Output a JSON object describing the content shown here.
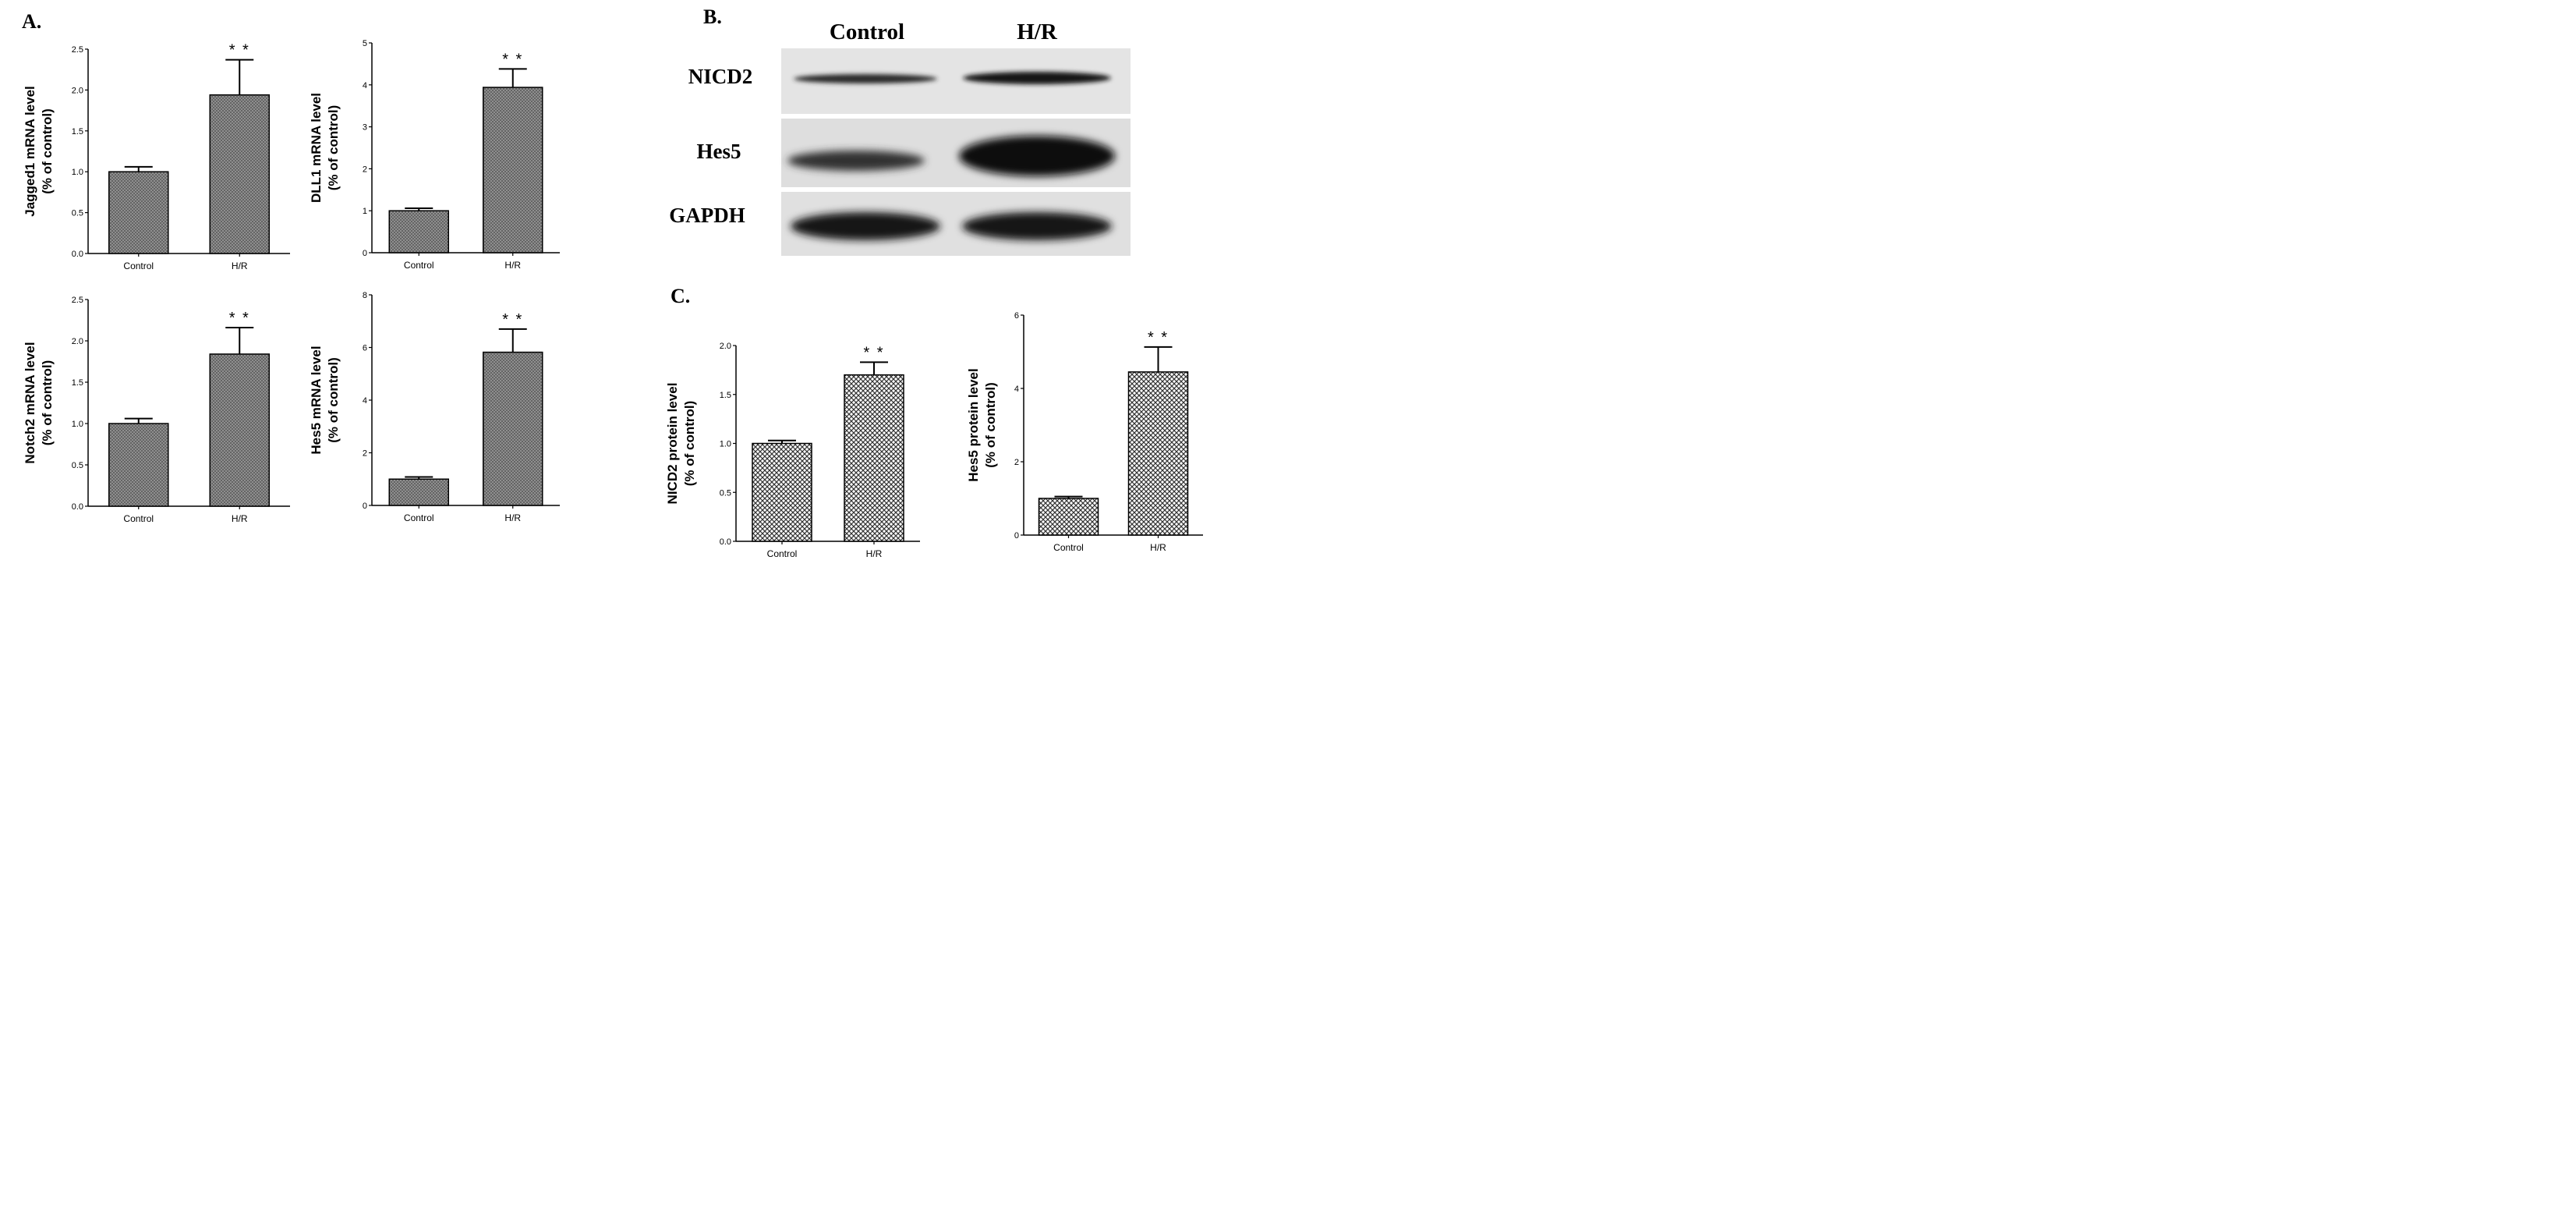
{
  "panels": {
    "a_label": "A.",
    "b_label": "B.",
    "c_label": "C."
  },
  "western_blot": {
    "columns": [
      "Control",
      "H/R"
    ],
    "rows": [
      "NICD2",
      "Hes5",
      "GAPDH"
    ]
  },
  "colors": {
    "bar_fill": "#8a8a8a",
    "axis": "#000000",
    "blot_background": "#e2e2e2",
    "band": "#1a1a1a"
  },
  "chart_data": [
    {
      "type": "bar",
      "categories": [
        "Control",
        "H/R"
      ],
      "values": [
        1.0,
        1.94
      ],
      "errors": [
        0.06,
        0.43
      ],
      "significance": [
        "",
        "* *"
      ],
      "ylabel_lines": [
        "Jagged1 mRNA level",
        "(% of control)"
      ],
      "ylim": [
        0,
        2.5
      ],
      "yticks": [
        "0.0",
        "0.5",
        "1.0",
        "1.5",
        "2.0",
        "2.5"
      ]
    },
    {
      "type": "bar",
      "categories": [
        "Control",
        "H/R"
      ],
      "values": [
        1.0,
        3.94
      ],
      "errors": [
        0.06,
        0.44
      ],
      "significance": [
        "",
        "* *"
      ],
      "ylabel_lines": [
        "DLL1 mRNA level",
        "(% of control)"
      ],
      "ylim": [
        0,
        5
      ],
      "yticks": [
        "0",
        "1",
        "2",
        "3",
        "4",
        "5"
      ]
    },
    {
      "type": "bar",
      "categories": [
        "Control",
        "H/R"
      ],
      "values": [
        1.0,
        1.84
      ],
      "errors": [
        0.06,
        0.32
      ],
      "significance": [
        "",
        "* *"
      ],
      "ylabel_lines": [
        "Notch2 mRNA level",
        "(% of control)"
      ],
      "ylim": [
        0,
        2.5
      ],
      "yticks": [
        "0.0",
        "0.5",
        "1.0",
        "1.5",
        "2.0",
        "2.5"
      ]
    },
    {
      "type": "bar",
      "categories": [
        "Control",
        "H/R"
      ],
      "values": [
        1.0,
        5.82
      ],
      "errors": [
        0.08,
        0.88
      ],
      "significance": [
        "",
        "* *"
      ],
      "ylabel_lines": [
        "Hes5 mRNA level",
        "(% of control)"
      ],
      "ylim": [
        0,
        8
      ],
      "yticks": [
        "0",
        "2",
        "4",
        "6",
        "8"
      ]
    },
    {
      "type": "bar",
      "categories": [
        "Control",
        "H/R"
      ],
      "values": [
        1.0,
        1.7
      ],
      "errors": [
        0.03,
        0.13
      ],
      "significance": [
        "",
        "* *"
      ],
      "ylabel_lines": [
        "NICD2 protein level",
        "(% of control)"
      ],
      "ylim": [
        0,
        2.0
      ],
      "yticks": [
        "0.0",
        "0.5",
        "1.0",
        "1.5",
        "2.0"
      ]
    },
    {
      "type": "bar",
      "categories": [
        "Control",
        "H/R"
      ],
      "values": [
        1.0,
        4.45
      ],
      "errors": [
        0.05,
        0.68
      ],
      "significance": [
        "",
        "* *"
      ],
      "ylabel_lines": [
        "Hes5 protein level",
        "(% of control)"
      ],
      "ylim": [
        0,
        6
      ],
      "yticks": [
        "0",
        "2",
        "4",
        "6"
      ]
    }
  ]
}
